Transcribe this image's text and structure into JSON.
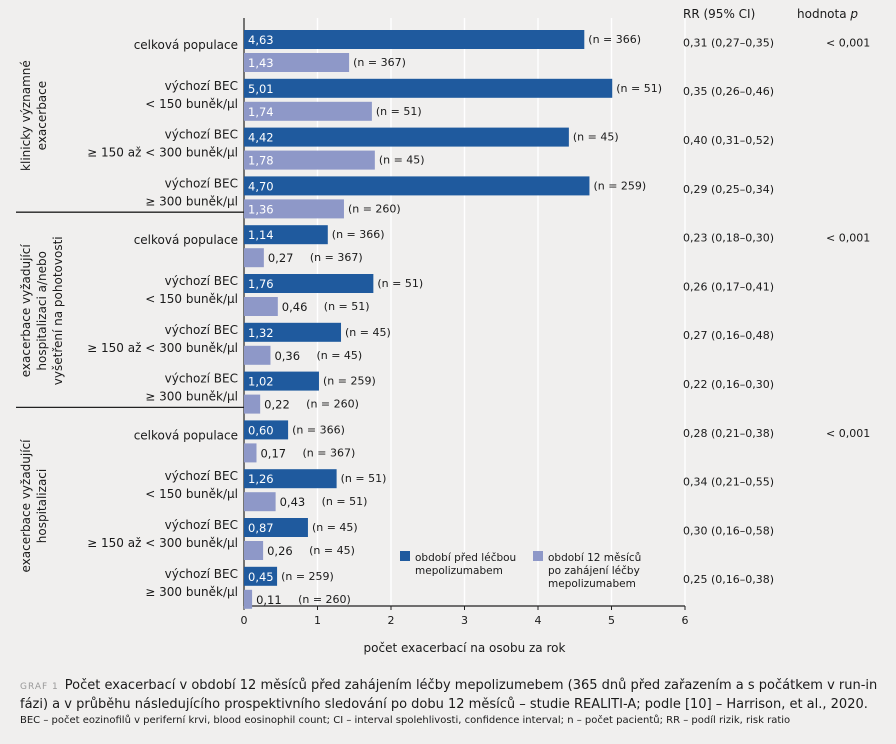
{
  "colors": {
    "before": "#1f5a9e",
    "after": "#8e98c8",
    "axis": "#222222",
    "grid": "#ffffff"
  },
  "chart_data": {
    "type": "bar",
    "orientation": "horizontal",
    "xlabel": "počet exacerbací na osobu za rok",
    "xlim": [
      0,
      6
    ],
    "xticks": [
      "0",
      "1",
      "2",
      "3",
      "4",
      "5",
      "6"
    ],
    "grid": true,
    "legend": [
      {
        "key": "before",
        "lines": [
          "období před léčbou",
          "mepolizumabem"
        ]
      },
      {
        "key": "after",
        "lines": [
          "období 12 měsíců",
          "po zahájení léčby",
          "mepolizumabem"
        ]
      }
    ],
    "legend_position": "bottom-right",
    "column_headers": {
      "rr": "RR (95% CI)",
      "p": "hodnota p",
      "p_prefix": "hodnota ",
      "p_italic": "p"
    },
    "groups": [
      {
        "label_lines": [
          "klinicky významné",
          "exacerbace"
        ],
        "rows": [
          {
            "label_lines": [
              "celková populace"
            ],
            "before": 4.63,
            "before_label": "4,63",
            "n_before": "(n = 366)",
            "after": 1.43,
            "after_label": "1,43",
            "n_after": "(n = 367)",
            "rr": "0,31 (0,27–0,35)",
            "p": "< 0,001"
          },
          {
            "label_lines": [
              "výchozí BEC",
              "< 150 buněk/µl"
            ],
            "before": 5.01,
            "before_label": "5,01",
            "n_before": "(n = 51)",
            "after": 1.74,
            "after_label": "1,74",
            "n_after": "(n = 51)",
            "rr": "0,35 (0,26–0,46)",
            "p": ""
          },
          {
            "label_lines": [
              "výchozí BEC",
              "≥ 150 až < 300 buněk/µl"
            ],
            "before": 4.42,
            "before_label": "4,42",
            "n_before": "(n = 45)",
            "after": 1.78,
            "after_label": "1,78",
            "n_after": "(n = 45)",
            "rr": "0,40 (0,31–0,52)",
            "p": ""
          },
          {
            "label_lines": [
              "výchozí BEC",
              "≥ 300 buněk/µl"
            ],
            "before": 4.7,
            "before_label": "4,70",
            "n_before": "(n = 259)",
            "after": 1.36,
            "after_label": "1,36",
            "n_after": "(n = 260)",
            "rr": "0,29 (0,25–0,34)",
            "p": ""
          }
        ]
      },
      {
        "label_lines": [
          "exacerbace vyžadující",
          "hospitalizaci a/nebo",
          "vyšetření na pohotovosti"
        ],
        "rows": [
          {
            "label_lines": [
              "celková populace"
            ],
            "before": 1.14,
            "before_label": "1,14",
            "n_before": "(n = 366)",
            "after": 0.27,
            "after_label": "0,27",
            "n_after": "(n = 367)",
            "rr": "0,23 (0,18–0,30)",
            "p": "< 0,001"
          },
          {
            "label_lines": [
              "výchozí BEC",
              "< 150 buněk/µl"
            ],
            "before": 1.76,
            "before_label": "1,76",
            "n_before": "(n = 51)",
            "after": 0.46,
            "after_label": "0,46",
            "n_after": "(n = 51)",
            "rr": "0,26 (0,17–0,41)",
            "p": ""
          },
          {
            "label_lines": [
              "výchozí BEC",
              "≥ 150 až < 300 buněk/µl"
            ],
            "before": 1.32,
            "before_label": "1,32",
            "n_before": "(n = 45)",
            "after": 0.36,
            "after_label": "0,36",
            "n_after": "(n = 45)",
            "rr": "0,27 (0,16–0,48)",
            "p": ""
          },
          {
            "label_lines": [
              "výchozí BEC",
              "≥ 300 buněk/µl"
            ],
            "before": 1.02,
            "before_label": "1,02",
            "n_before": "(n = 259)",
            "after": 0.22,
            "after_label": "0,22",
            "n_after": "(n = 260)",
            "rr": "0,22 (0,16–0,30)",
            "p": ""
          }
        ]
      },
      {
        "label_lines": [
          "exacerbace vyžadující",
          "hospitalizaci"
        ],
        "rows": [
          {
            "label_lines": [
              "celková populace"
            ],
            "before": 0.6,
            "before_label": "0,60",
            "n_before": "(n = 366)",
            "after": 0.17,
            "after_label": "0,17",
            "n_after": "(n = 367)",
            "rr": "0,28 (0,21–0,38)",
            "p": "< 0,001"
          },
          {
            "label_lines": [
              "výchozí BEC",
              "< 150 buněk/µl"
            ],
            "before": 1.26,
            "before_label": "1,26",
            "n_before": "(n = 51)",
            "after": 0.43,
            "after_label": "0,43",
            "n_after": "(n = 51)",
            "rr": "0,34 (0,21–0,55)",
            "p": ""
          },
          {
            "label_lines": [
              "výchozí BEC",
              "≥ 150 až < 300 buněk/µl"
            ],
            "before": 0.87,
            "before_label": "0,87",
            "n_before": "(n = 45)",
            "after": 0.26,
            "after_label": "0,26",
            "n_after": "(n = 45)",
            "rr": "0,30 (0,16–0,58)",
            "p": ""
          },
          {
            "label_lines": [
              "výchozí BEC",
              "≥ 300 buněk/µl"
            ],
            "before": 0.45,
            "before_label": "0,45",
            "n_before": "(n = 259)",
            "after": 0.11,
            "after_label": "0,11",
            "n_after": "(n = 260)",
            "rr": "0,25 (0,16–0,38)",
            "p": ""
          }
        ]
      }
    ]
  },
  "caption": {
    "tag": "GRAF 1",
    "text": "Počet exacerbací v období 12 měsíců před zahájením léčby mepolizumebem (365 dnů před zařazením a s počátkem v run-in fázi) a v průběhu následujícího prospektivního sledování po dobu 12 měsíců – studie REALITI-A; podle [10] – Harrison, et al., 2020."
  },
  "footnote": "BEC – počet eozinofilů v periferní krvi, blood eosinophil count; CI – interval spolehlivosti, confidence interval; n – počet pacientů; RR – podíl rizik, risk ratio"
}
